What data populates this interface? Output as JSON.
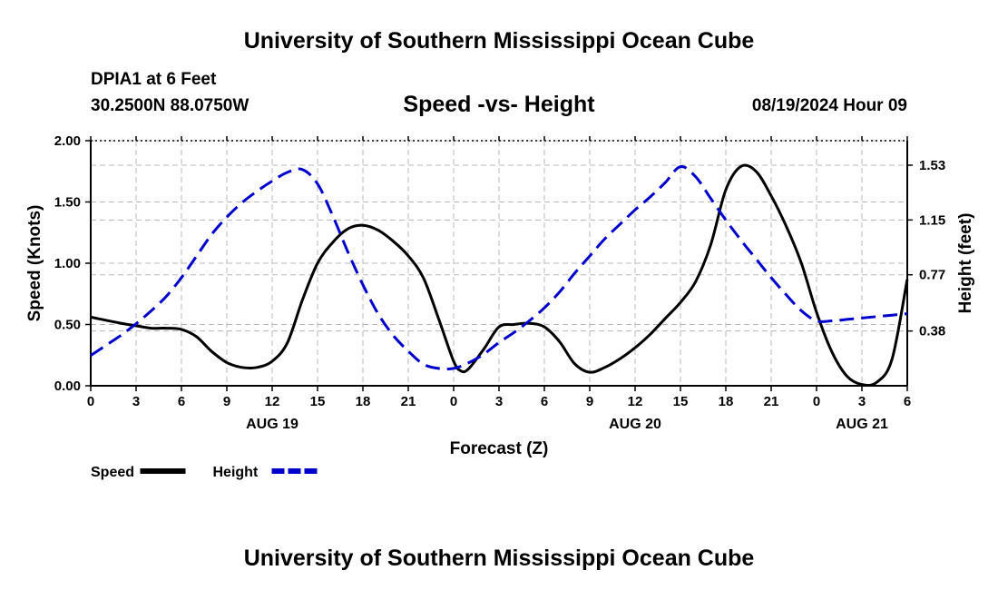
{
  "header": {
    "title": "University of Southern Mississippi Ocean Cube",
    "station": "DPIA1 at 6 Feet",
    "coords": "30.2500N  88.0750W",
    "datetime": "08/19/2024 Hour 09",
    "footer_title": "University of Southern Mississippi Ocean Cube"
  },
  "chart_data": {
    "type": "line",
    "title": "Speed -vs- Height",
    "xlabel": "Forecast (Z)",
    "ylabel": "Speed (Knots)",
    "y2label": "Height (feet)",
    "xlim": [
      0,
      54
    ],
    "ylim": [
      0,
      2.0
    ],
    "y2lim": [
      0,
      1.7
    ],
    "x_ticks": [
      0,
      3,
      6,
      9,
      12,
      15,
      18,
      21,
      24,
      27,
      30,
      33,
      36,
      39,
      42,
      45,
      48,
      51,
      54
    ],
    "x_tick_labels": [
      "0",
      "3",
      "6",
      "9",
      "12",
      "15",
      "18",
      "21",
      "0",
      "3",
      "6",
      "9",
      "12",
      "15",
      "18",
      "21",
      "0",
      "3",
      "6"
    ],
    "day_labels": [
      {
        "x": 12,
        "label": "AUG 19"
      },
      {
        "x": 36,
        "label": "AUG 20"
      },
      {
        "x": 51,
        "label": "AUG 21"
      }
    ],
    "y_ticks": [
      0,
      0.5,
      1.0,
      1.5,
      2.0
    ],
    "y_tick_labels": [
      "0.00",
      "0.50",
      "1.00",
      "1.50",
      "2.00"
    ],
    "y2_ticks": [
      0.38,
      0.77,
      1.15,
      1.53
    ],
    "y2_tick_labels": [
      "0.38",
      "0.77",
      "1.15",
      "1.53"
    ],
    "grid": true,
    "series": [
      {
        "name": "Speed",
        "axis": "left",
        "color": "#000000",
        "style": "solid",
        "x": [
          0,
          2,
          3,
          4,
          5,
          6,
          7,
          8,
          9,
          10,
          11,
          12,
          13,
          14,
          15,
          16,
          17,
          18,
          19,
          20,
          21,
          22,
          23,
          24,
          24.5,
          25,
          26,
          27,
          28,
          29,
          30,
          31,
          32,
          33,
          34,
          35,
          36,
          37,
          38,
          39,
          40,
          41,
          42,
          43,
          44,
          45,
          46,
          47,
          48,
          49,
          50,
          51,
          52,
          53,
          54
        ],
        "values": [
          0.56,
          0.51,
          0.49,
          0.47,
          0.47,
          0.46,
          0.4,
          0.28,
          0.19,
          0.15,
          0.15,
          0.2,
          0.35,
          0.7,
          1.0,
          1.17,
          1.28,
          1.31,
          1.27,
          1.18,
          1.06,
          0.88,
          0.55,
          0.2,
          0.12,
          0.14,
          0.3,
          0.48,
          0.5,
          0.51,
          0.48,
          0.36,
          0.18,
          0.11,
          0.15,
          0.22,
          0.31,
          0.42,
          0.55,
          0.68,
          0.85,
          1.15,
          1.6,
          1.79,
          1.75,
          1.55,
          1.3,
          1.0,
          0.6,
          0.28,
          0.08,
          0.01,
          0.03,
          0.22,
          0.87
        ]
      },
      {
        "name": "Height",
        "axis": "right",
        "color": "#0000cc",
        "style": "dashed",
        "x": [
          0,
          1,
          2,
          3,
          4,
          5,
          6,
          7,
          8,
          9,
          10,
          11,
          12,
          13,
          14,
          15,
          16,
          17,
          18,
          19,
          20,
          21,
          22,
          23,
          24,
          25,
          26,
          27,
          28,
          29,
          30,
          31,
          32,
          33,
          34,
          35,
          36,
          37,
          38,
          39,
          40,
          41,
          42,
          43,
          44,
          45,
          46,
          47,
          48,
          49,
          50,
          51,
          52,
          53,
          54
        ],
        "values": [
          0.21,
          0.28,
          0.35,
          0.43,
          0.52,
          0.62,
          0.75,
          0.9,
          1.05,
          1.17,
          1.27,
          1.35,
          1.42,
          1.48,
          1.5,
          1.4,
          1.18,
          0.93,
          0.7,
          0.5,
          0.35,
          0.24,
          0.15,
          0.12,
          0.12,
          0.16,
          0.22,
          0.3,
          0.37,
          0.45,
          0.54,
          0.65,
          0.78,
          0.9,
          1.02,
          1.12,
          1.22,
          1.31,
          1.41,
          1.52,
          1.45,
          1.3,
          1.15,
          1.01,
          0.88,
          0.75,
          0.63,
          0.52,
          0.45,
          0.45,
          0.46,
          0.47,
          0.48,
          0.49,
          0.5
        ]
      }
    ],
    "legend": [
      {
        "label": "Speed",
        "color": "#000000",
        "style": "solid"
      },
      {
        "label": "Height",
        "color": "#0000cc",
        "style": "dashed"
      }
    ],
    "legend_position": "bottom-left"
  }
}
